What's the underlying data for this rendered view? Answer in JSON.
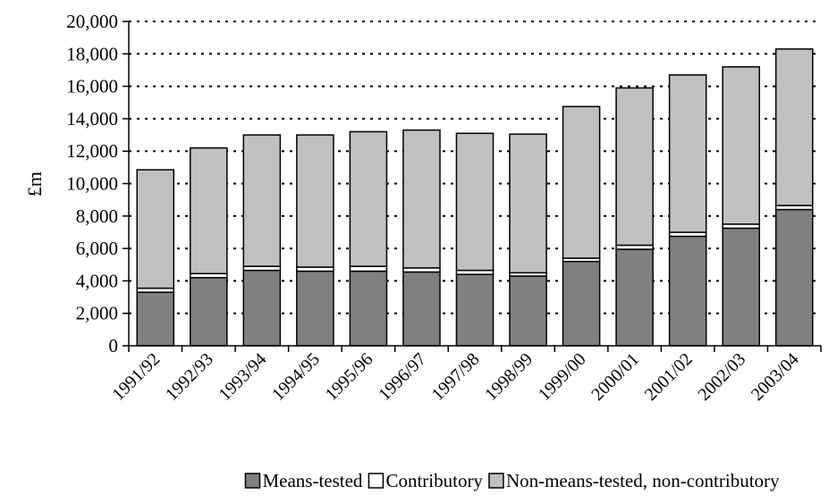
{
  "chart_data": {
    "type": "bar",
    "stacked": true,
    "ylabel": "£m",
    "xlabel": "",
    "ylim": [
      0,
      20000
    ],
    "ytick_step": 2000,
    "yticks": [
      "0",
      "2,000",
      "4,000",
      "6,000",
      "8,000",
      "10,000",
      "12,000",
      "14,000",
      "16,000",
      "18,000",
      "20,000"
    ],
    "grid": "dotted-horizontal",
    "legend_position": "bottom",
    "categories": [
      "1991/92",
      "1992/93",
      "1993/94",
      "1994/95",
      "1995/96",
      "1996/97",
      "1997/98",
      "1998/99",
      "1999/00",
      "2000/01",
      "2001/02",
      "2002/03",
      "2003/04"
    ],
    "series": [
      {
        "name": "Means-tested",
        "color": "#808080",
        "values": [
          3300,
          4200,
          4650,
          4600,
          4600,
          4550,
          4400,
          4300,
          5200,
          5950,
          6750,
          7250,
          8400
        ]
      },
      {
        "name": "Contributory",
        "color": "#ffffff",
        "values": [
          250,
          250,
          250,
          250,
          300,
          250,
          250,
          200,
          200,
          250,
          250,
          250,
          250
        ]
      },
      {
        "name": "Non-means-tested, non-contributory",
        "color": "#c0c0c0",
        "values": [
          7300,
          7750,
          8100,
          8150,
          8300,
          8500,
          8450,
          8550,
          9350,
          9700,
          9700,
          9700,
          9650
        ]
      }
    ]
  }
}
